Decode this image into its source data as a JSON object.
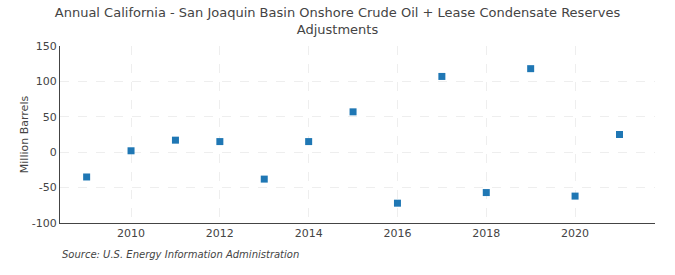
{
  "chart_data": {
    "type": "scatter",
    "title": "Annual California - San Joaquin Basin Onshore Crude Oil + Lease Condensate Reserves\nAdjustments",
    "ylabel": "Million Barrels",
    "source": "Source: U.S. Energy Information Administration",
    "x": [
      2009,
      2010,
      2011,
      2012,
      2013,
      2014,
      2015,
      2016,
      2017,
      2018,
      2019,
      2020,
      2021
    ],
    "values": [
      -35,
      2,
      17,
      15,
      -38,
      15,
      57,
      -72,
      107,
      -57,
      118,
      -62,
      25
    ],
    "marker": "square",
    "xlim": [
      2008.4,
      2021.8
    ],
    "xticks": [
      2010,
      2012,
      2014,
      2016,
      2018,
      2020
    ],
    "ylim": [
      -100,
      150
    ],
    "yticks": [
      -100,
      -50,
      0,
      50,
      100,
      150
    ],
    "grid": true
  }
}
